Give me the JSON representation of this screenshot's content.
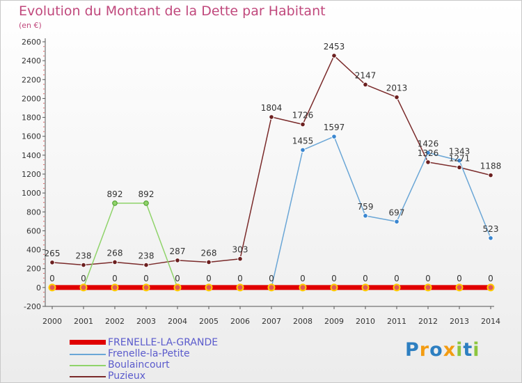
{
  "header": {
    "title": "Evolution du Montant de la Dette par Habitant",
    "subtitle": "(en €)"
  },
  "brand": {
    "logo_text": "Proxiti",
    "logo_colors": [
      "#2d7fc1",
      "#f39c12",
      "#2d7fc1",
      "#f39c12",
      "#8dc63f",
      "#2d7fc1",
      "#8dc63f"
    ]
  },
  "chart_data": {
    "type": "line",
    "title": "Evolution du Montant de la Dette par Habitant",
    "subtitle": "(en €)",
    "xlabel": "",
    "ylabel": "",
    "x": [
      "2000",
      "2001",
      "2002",
      "2003",
      "2004",
      "2005",
      "2006",
      "2007",
      "2008",
      "2009",
      "2010",
      "2011",
      "2012",
      "2013",
      "2014"
    ],
    "ylim": [
      -200,
      2600
    ],
    "yticks": [
      "-200",
      "0",
      "200",
      "400",
      "600",
      "800",
      "1000",
      "1200",
      "1400",
      "1600",
      "1800",
      "2000",
      "2200",
      "2400",
      "2600"
    ],
    "grid": false,
    "legend_position": "bottom-left",
    "series": [
      {
        "name": "FRENELLE-LA-GRANDE",
        "color": "#e00000",
        "values": [
          0,
          0,
          0,
          0,
          0,
          0,
          0,
          0,
          0,
          0,
          0,
          0,
          0,
          0,
          0
        ],
        "labels": [
          "0",
          "0",
          "0",
          "0",
          "0",
          "0",
          "0",
          "0",
          "0",
          "0",
          "0",
          "0",
          "0",
          "0",
          "0"
        ]
      },
      {
        "name": "Frenelle-la-Petite",
        "color": "#6aa6d6",
        "values": [
          0,
          0,
          0,
          0,
          0,
          0,
          0,
          0,
          1455,
          1597,
          759,
          697,
          1426,
          1343,
          523
        ],
        "labels": [
          "",
          "",
          "",
          "",
          "",
          "",
          "",
          "",
          "1455",
          "1597",
          "759",
          "697",
          "1426",
          "1343",
          "523"
        ]
      },
      {
        "name": "Boulaincourt",
        "color": "#8fd36a",
        "values": [
          0,
          0,
          892,
          892,
          0,
          0,
          0,
          0,
          0,
          0,
          0,
          0,
          0,
          0,
          0
        ],
        "labels": [
          "",
          "",
          "892",
          "892",
          "",
          "",
          "",
          "",
          "",
          "",
          "",
          "",
          "",
          "",
          ""
        ]
      },
      {
        "name": "Puzieux",
        "color": "#7a2a2a",
        "values": [
          265,
          238,
          268,
          238,
          287,
          268,
          303,
          1804,
          1726,
          2453,
          2147,
          2013,
          1326,
          1271,
          1188
        ],
        "labels": [
          "265",
          "238",
          "268",
          "238",
          "287",
          "268",
          "303",
          "1804",
          "1726",
          "2453",
          "2147",
          "2013",
          "1326",
          "1271",
          "1188"
        ]
      }
    ]
  }
}
